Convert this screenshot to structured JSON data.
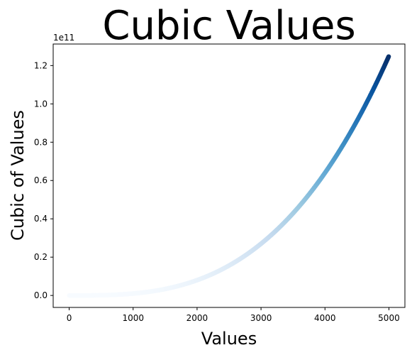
{
  "chart_data": {
    "type": "scatter",
    "title": "Cubic Values",
    "xlabel": "Values",
    "ylabel": "Cubic of Values",
    "x_range": [
      1,
      5000
    ],
    "y_formula": "x^3",
    "xlim": [
      -250,
      5250
    ],
    "ylim": [
      -0.0625,
      1.3125
    ],
    "y_scale_note": "1e11",
    "x_ticks": [
      0,
      1000,
      2000,
      3000,
      4000,
      5000
    ],
    "x_tick_labels": [
      "0",
      "1000",
      "2000",
      "3000",
      "4000",
      "5000"
    ],
    "y_ticks": [
      0.0,
      0.2,
      0.4,
      0.6,
      0.8,
      1.0,
      1.2
    ],
    "y_tick_labels": [
      "0.0",
      "0.2",
      "0.4",
      "0.6",
      "0.8",
      "1.0",
      "1.2"
    ],
    "colormap": "Blues",
    "colormap_stops": [
      "#f7fbff",
      "#deebf7",
      "#c6dbef",
      "#9ecae1",
      "#6baed6",
      "#4292c6",
      "#2171b5",
      "#08519c",
      "#08306b"
    ],
    "grid": false,
    "legend": "none"
  }
}
